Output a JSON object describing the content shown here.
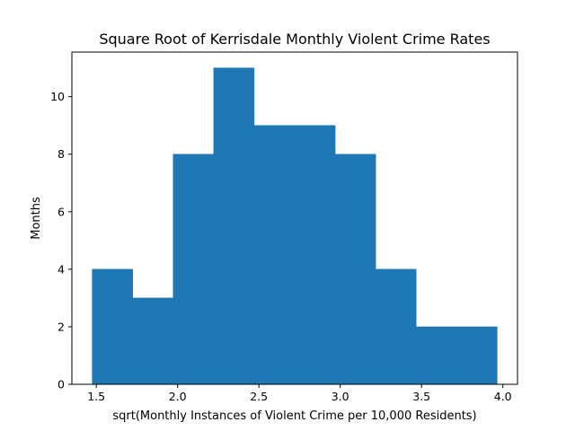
{
  "chart_data": {
    "type": "bar",
    "title": "Square Root of Kerrisdale Monthly Violent Crime Rates",
    "xlabel": "sqrt(Monthly Instances of Violent Crime per 10,000 Residents)",
    "ylabel": "Months",
    "bin_edges": [
      1.475,
      1.724,
      1.973,
      2.222,
      2.471,
      2.72,
      2.969,
      3.218,
      3.467,
      3.716,
      3.965
    ],
    "values": [
      4,
      3,
      8,
      11,
      9,
      9,
      8,
      4,
      2,
      2
    ],
    "xlim": [
      1.35,
      4.09
    ],
    "ylim": [
      0,
      11.55
    ],
    "xticks": [
      1.5,
      2.0,
      2.5,
      3.0,
      3.5,
      4.0
    ],
    "xtick_labels": [
      "1.5",
      "2.0",
      "2.5",
      "3.0",
      "3.5",
      "4.0"
    ],
    "yticks": [
      0,
      2,
      4,
      6,
      8,
      10
    ],
    "ytick_labels": [
      "0",
      "2",
      "4",
      "6",
      "8",
      "10"
    ],
    "bar_color": "#1f77b4",
    "grid": false,
    "legend": "none"
  }
}
